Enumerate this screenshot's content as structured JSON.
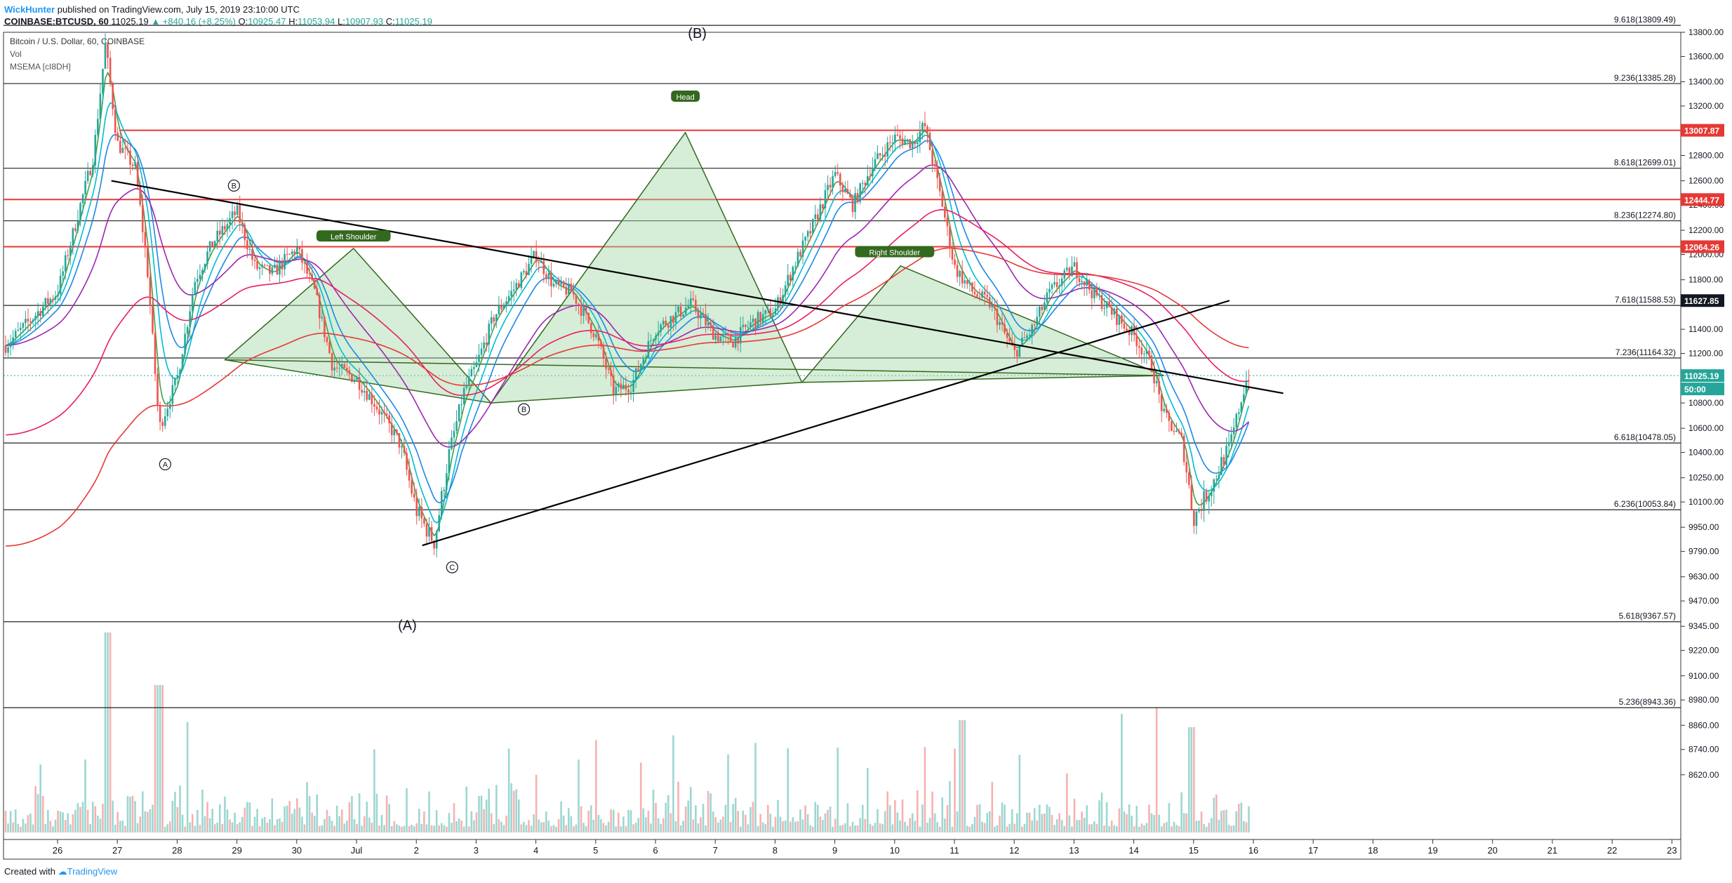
{
  "header": {
    "author": "WickHunter",
    "published_text": " published on TradingView.com, July 15, 2019 23:10:00 UTC"
  },
  "quote": {
    "symbol": "COINBASE:BTCUSD, 60",
    "last": "11025.19",
    "change": "▲ +840.16 (+8.25%)",
    "o_label": "O:",
    "o_value": "10925.47",
    "h_label": "H:",
    "h_value": "11053.94",
    "l_label": "L:",
    "l_value": "10907.93",
    "c_label": "C:",
    "c_value": "11025.19"
  },
  "legend": {
    "title": "Bitcoin / U.S. Dollar, 60, COINBASE",
    "vol": "Vol",
    "indicator": "MSEMA [cI8DH]"
  },
  "footer": {
    "created_with": "Created with",
    "brand": "TradingView"
  },
  "colors": {
    "up": "#26a69a",
    "down": "#ef5350",
    "pattern_fill": "#a5d6a7",
    "pattern_stroke": "#33691e",
    "ma_red": "#e53935",
    "ma_purple": "#9c27b0",
    "ma_pink": "#e91e63",
    "ma_blue": "#1e88e5",
    "ma_cyan": "#00bcd4",
    "ma_green": "#43a047",
    "level_red": "#e53935",
    "level_dark": "#131722"
  },
  "chart_data": {
    "type": "candlestick",
    "x_ticks": [
      "26",
      "27",
      "28",
      "29",
      "30",
      "Jul",
      "2",
      "3",
      "4",
      "5",
      "6",
      "7",
      "8",
      "9",
      "10",
      "11",
      "12",
      "13",
      "14",
      "15",
      "16",
      "17",
      "18",
      "19",
      "20",
      "21",
      "22",
      "23"
    ],
    "y_ticks": [
      "13800.00",
      "13600.00",
      "13400.00",
      "13200.00",
      "13000.00",
      "12800.00",
      "12600.00",
      "12400.00",
      "12200.00",
      "12000.00",
      "11800.00",
      "11600.00",
      "11400.00",
      "11200.00",
      "11000.00",
      "10800.00",
      "10600.00",
      "10400.00",
      "10250.00",
      "10100.00",
      "9950.00",
      "9790.00",
      "9630.00",
      "9470.00",
      "9345.00",
      "9220.00",
      "9100.00",
      "8980.00",
      "8860.00",
      "8740.00",
      "8620.00"
    ],
    "price_tags": [
      {
        "value": "13007.87",
        "color": "#e53935"
      },
      {
        "value": "12444.77",
        "color": "#e53935"
      },
      {
        "value": "12064.26",
        "color": "#e53935"
      },
      {
        "value": "11627.85",
        "color": "#131722"
      },
      {
        "value": "11025.19",
        "color": "#26a69a"
      },
      {
        "value": "50:00",
        "color": "#26a69a"
      }
    ],
    "fib_levels": [
      {
        "label": "9.618(13809.49)"
      },
      {
        "label": "9.236(13385.28)"
      },
      {
        "label": "8.618(12699.01)"
      },
      {
        "label": "8.236(12274.80)"
      },
      {
        "label": "7.618(11588.53)"
      },
      {
        "label": "7.236(11164.32)"
      },
      {
        "label": "6.618(10478.05)"
      },
      {
        "label": "6.236(10053.84)"
      },
      {
        "label": "5.618(9367.57)"
      },
      {
        "label": "5.236(8943.36)"
      }
    ],
    "annotations": [
      {
        "text": "(B)"
      },
      {
        "text": "(A)"
      },
      {
        "text": "Head"
      },
      {
        "text": "Left Shoulder"
      },
      {
        "text": "Right Shoulder"
      },
      {
        "text": "A"
      },
      {
        "text": "B"
      },
      {
        "text": "C"
      }
    ],
    "close_path": [
      [
        "25",
        11200
      ],
      [
        "26",
        11700
      ],
      [
        "26.6",
        12800
      ],
      [
        "26.8",
        13700
      ],
      [
        "27",
        12900
      ],
      [
        "27.3",
        12700
      ],
      [
        "27.5",
        11900
      ],
      [
        "27.7",
        10600
      ],
      [
        "28",
        11000
      ],
      [
        "28.3",
        11800
      ],
      [
        "28.6",
        12100
      ],
      [
        "29",
        12350
      ],
      [
        "29.3",
        11900
      ],
      [
        "29.6",
        11850
      ],
      [
        "30",
        12050
      ],
      [
        "30.3",
        11700
      ],
      [
        "30.6",
        11100
      ],
      [
        "Jul",
        11000
      ],
      [
        "1.3",
        10800
      ],
      [
        "1.7",
        10500
      ],
      [
        "2",
        10050
      ],
      [
        "2.3",
        9850
      ],
      [
        "2.5",
        10300
      ],
      [
        "2.8",
        10900
      ],
      [
        "3",
        11100
      ],
      [
        "3.3",
        11500
      ],
      [
        "3.6",
        11700
      ],
      [
        "4",
        12000
      ],
      [
        "4.3",
        11750
      ],
      [
        "4.6",
        11700
      ],
      [
        "5",
        11350
      ],
      [
        "5.3",
        10900
      ],
      [
        "5.6",
        10950
      ],
      [
        "6",
        11400
      ],
      [
        "6.3",
        11500
      ],
      [
        "6.6",
        11600
      ],
      [
        "7",
        11350
      ],
      [
        "7.3",
        11300
      ],
      [
        "7.6",
        11450
      ],
      [
        "8",
        11550
      ],
      [
        "8.3",
        11900
      ],
      [
        "8.6",
        12200
      ],
      [
        "9",
        12650
      ],
      [
        "9.3",
        12400
      ],
      [
        "9.6",
        12700
      ],
      [
        "10",
        12950
      ],
      [
        "10.3",
        12900
      ],
      [
        "10.5",
        13050
      ],
      [
        "10.8",
        12400
      ],
      [
        "11",
        11900
      ],
      [
        "11.3",
        11700
      ],
      [
        "11.6",
        11600
      ],
      [
        "12",
        11200
      ],
      [
        "12.3",
        11400
      ],
      [
        "12.6",
        11700
      ],
      [
        "13",
        11900
      ],
      [
        "13.3",
        11700
      ],
      [
        "13.6",
        11550
      ],
      [
        "14",
        11350
      ],
      [
        "14.3",
        11100
      ],
      [
        "14.5",
        10700
      ],
      [
        "14.8",
        10500
      ],
      [
        "15",
        10000
      ],
      [
        "15.3",
        10200
      ],
      [
        "15.6",
        10450
      ],
      [
        "15.9",
        11025
      ]
    ]
  }
}
